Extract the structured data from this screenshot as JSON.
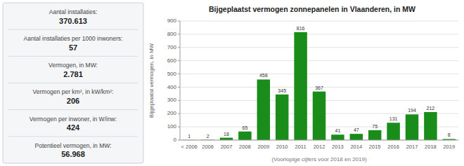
{
  "chart_data": {
    "type": "bar",
    "title": "Bijgeplaatst vermogen zonnepanelen in Vlaanderen, in MW",
    "categories": [
      "< 2006",
      "2006",
      "2007",
      "2008",
      "2009",
      "2010",
      "2011",
      "2012",
      "2013",
      "2014",
      "2015",
      "2016",
      "2017",
      "2018",
      "2019"
    ],
    "values": [
      1,
      2,
      18,
      65,
      458,
      345,
      816,
      367,
      41,
      47,
      75,
      131,
      194,
      212,
      8
    ],
    "color": "#1a8c1a",
    "ylabel": "Bijgeplaatst vermogen, in MW",
    "xlabel": "(Voorlopige cijfers voor 2018 en 2019)",
    "ylim": [
      0,
      900
    ],
    "yticks": [
      0,
      100,
      200,
      300,
      400,
      500,
      600,
      700,
      800,
      900
    ],
    "grid": true,
    "data_labels": true,
    "annotations": [
      "Aantal installaties:",
      "370.613",
      "Aantal installaties per 1000 inwoners:",
      "57",
      "Vermogen, in MW:",
      "2.781",
      "Vermogen per km², in kW/km²:",
      "206",
      "Vermogen per inwoner, in W/inw:",
      "424",
      "Potentieel vermogen, in MW:",
      "56.968"
    ]
  }
}
